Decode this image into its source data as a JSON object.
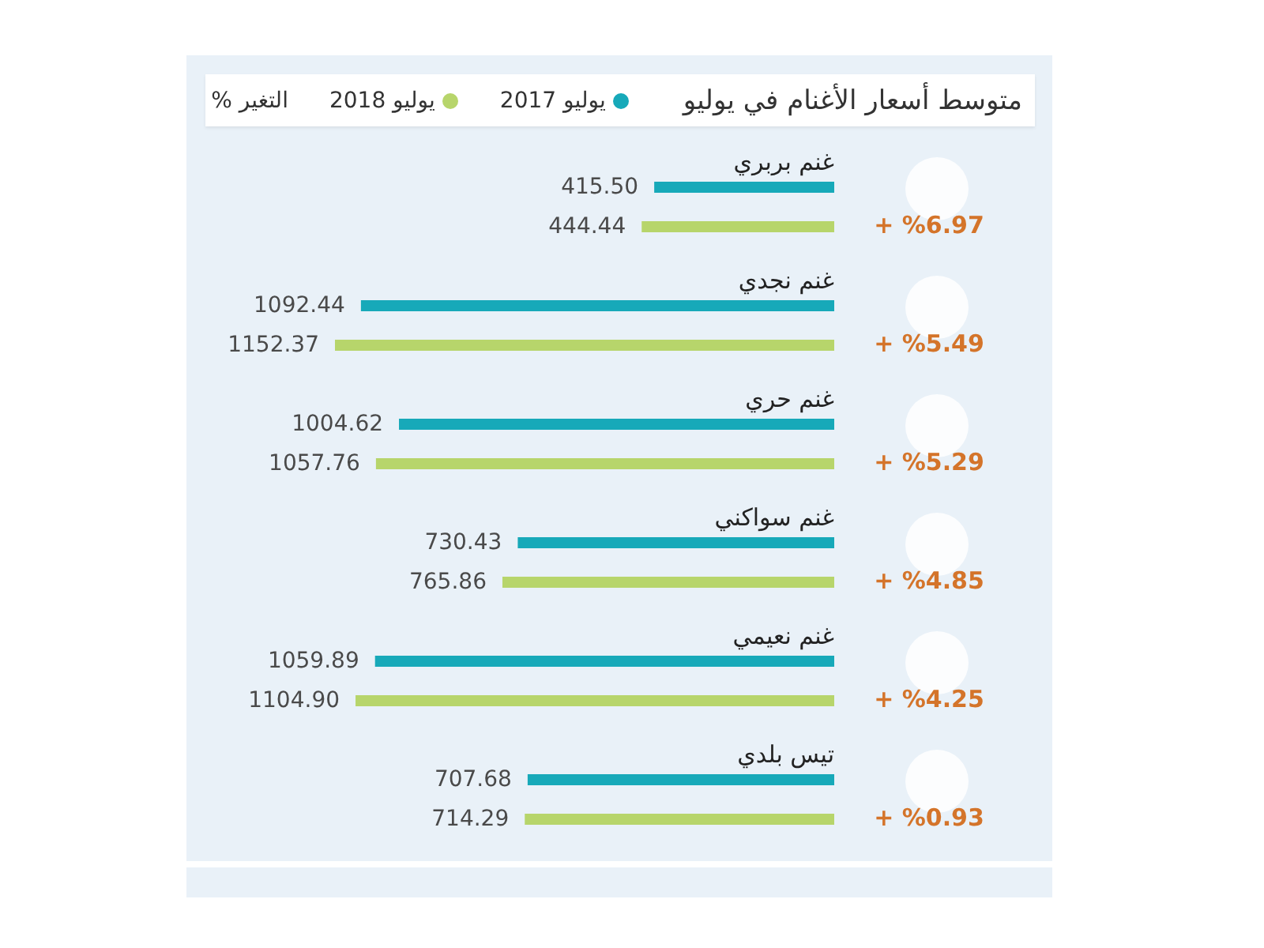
{
  "chart_data": {
    "type": "bar",
    "orientation": "horizontal",
    "title": "متوسط أسعار الأغنام في يوليو",
    "categories": [
      "غنم بربري",
      "غنم نجدي",
      "غنم حري",
      "غنم سواكني",
      "غنم نعيمي",
      "تيس بلدي"
    ],
    "series": [
      {
        "name": "يوليو 2017",
        "color": "#17a9b9",
        "values": [
          415.5,
          1092.44,
          1004.62,
          730.43,
          1059.89,
          707.68
        ],
        "value_labels": [
          "415.50",
          "1092.44",
          "1004.62",
          "730.43",
          "1059.89",
          "707.68"
        ]
      },
      {
        "name": "يوليو 2018",
        "color": "#b7d56b",
        "values": [
          444.44,
          1152.37,
          1057.76,
          765.86,
          1104.9,
          714.29
        ],
        "value_labels": [
          "444.44",
          "1152.37",
          "1057.76",
          "765.86",
          "1104.90",
          "714.29"
        ]
      }
    ],
    "annotations": [
      "التغير %",
      "+ %6.97",
      "+ %5.49",
      "+ %5.29",
      "+ %4.85",
      "+ %4.25",
      "+ %0.93"
    ],
    "legend": "top"
  }
}
